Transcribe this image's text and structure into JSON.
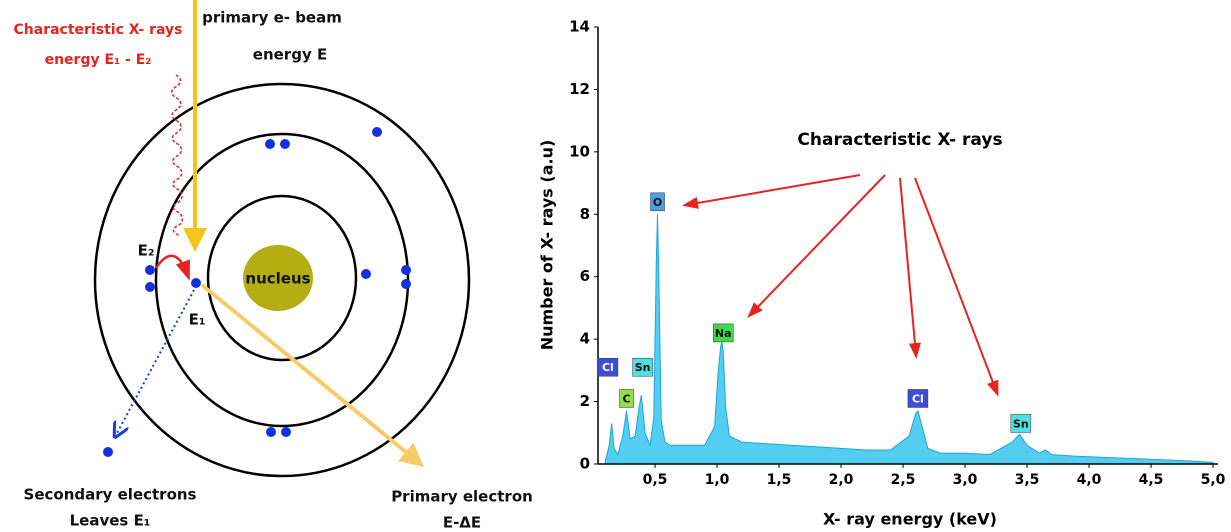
{
  "diagram": {
    "xray_title": "Characteristic X- rays",
    "xray_energy": "energy E₁ - E₂",
    "beam_title": "primary e- beam",
    "beam_energy": "energy E",
    "nucleus": "nucleus",
    "e2": "E₂",
    "e1": "E₁",
    "secondary_title": "Secondary electrons",
    "secondary_sub": "Leaves E₁",
    "primary_title": "Primary electron",
    "primary_sub": "E-ΔE"
  },
  "chart_data": {
    "type": "area",
    "y_label": "Number of X- rays (a.u)",
    "x_label": "X- ray energy (keV)",
    "annotation": "Characteristic X- rays",
    "xlim": [
      0.04,
      5.04
    ],
    "ylim": [
      0,
      14
    ],
    "xticks": [
      {
        "value": 0.5,
        "label": "0,5"
      },
      {
        "value": 1.0,
        "label": "1,0"
      },
      {
        "value": 1.5,
        "label": "1,5"
      },
      {
        "value": 2.0,
        "label": "2,0"
      },
      {
        "value": 2.5,
        "label": "2,5"
      },
      {
        "value": 3.0,
        "label": "3,0"
      },
      {
        "value": 3.5,
        "label": "3,5"
      },
      {
        "value": 4.0,
        "label": "4,0"
      },
      {
        "value": 4.5,
        "label": "4,5"
      },
      {
        "value": 5.0,
        "label": "5,0"
      }
    ],
    "yticks": [
      0,
      2,
      4,
      6,
      8,
      10,
      12,
      14
    ],
    "grid": false,
    "x": [
      0.1,
      0.13,
      0.15,
      0.17,
      0.2,
      0.24,
      0.27,
      0.3,
      0.34,
      0.37,
      0.39,
      0.42,
      0.46,
      0.49,
      0.51,
      0.52,
      0.53,
      0.55,
      0.58,
      0.62,
      0.7,
      0.8,
      0.9,
      0.98,
      1.01,
      1.03,
      1.04,
      1.05,
      1.07,
      1.1,
      1.2,
      1.4,
      1.6,
      1.8,
      2.0,
      2.2,
      2.4,
      2.55,
      2.6,
      2.62,
      2.64,
      2.7,
      2.8,
      3.0,
      3.2,
      3.38,
      3.44,
      3.5,
      3.6,
      3.65,
      3.7,
      3.9,
      4.2,
      4.5,
      4.8,
      5.0
    ],
    "series": [
      {
        "color": "#35c6ee",
        "values": [
          0.1,
          0.6,
          1.3,
          0.5,
          0.3,
          0.9,
          1.7,
          0.8,
          0.9,
          1.8,
          2.2,
          1.0,
          0.6,
          1.5,
          6.5,
          8.0,
          6.0,
          1.4,
          0.7,
          0.6,
          0.6,
          0.6,
          0.6,
          1.2,
          3.0,
          3.8,
          3.9,
          3.6,
          1.8,
          0.9,
          0.7,
          0.65,
          0.6,
          0.55,
          0.5,
          0.45,
          0.45,
          0.9,
          1.6,
          1.7,
          1.4,
          0.5,
          0.35,
          0.35,
          0.3,
          0.7,
          0.95,
          0.6,
          0.35,
          0.45,
          0.3,
          0.25,
          0.2,
          0.15,
          0.1,
          0.05
        ]
      }
    ],
    "peak_labels": [
      {
        "text": "Cl",
        "color": "#3d4fd6"
      },
      {
        "text": "C",
        "color": "#8ee04a"
      },
      {
        "text": "Sn",
        "color": "#4fe0e0"
      },
      {
        "text": "O",
        "color": "#4a9ee8"
      },
      {
        "text": "Na",
        "color": "#3ed84a"
      },
      {
        "text": "Cl",
        "color": "#3d4fd6"
      },
      {
        "text": "Sn",
        "color": "#4fe0e0"
      }
    ]
  }
}
